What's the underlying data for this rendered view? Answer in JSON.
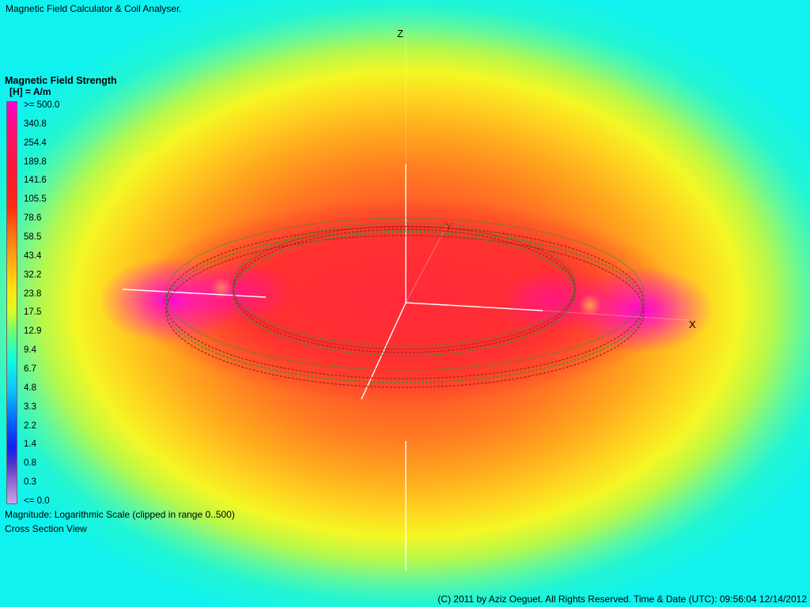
{
  "window": {
    "title": "Magnetic Field Calculator & Coil Analyser."
  },
  "legend": {
    "title": "Magnetic Field Strength",
    "unit": "[H] = A/m",
    "ticks": [
      ">= 500.0",
      "340.8",
      "254.4",
      "189.8",
      "141.6",
      "105.5",
      "78.6",
      "58.5",
      "43.4",
      "32.2",
      "23.8",
      "17.5",
      "12.9",
      "9.4",
      "6.7",
      "4.8",
      "3.3",
      "2.2",
      "1.4",
      "0.8",
      "0.3",
      "<= 0.0"
    ]
  },
  "magnitude_note": "Magnitude: Logarithmic Scale (clipped in range 0..500)",
  "view_mode": "Cross Section View",
  "axes": {
    "z": "Z",
    "x": "X",
    "y": "Y"
  },
  "footer": {
    "copyright": "(C) 2011 by Aziz Oeguet. All Rights Reserved.  Time & Date (UTC): 09:56:04  12/14/2012"
  },
  "colors": {
    "wire_red": "#a02020",
    "wire_green": "#20a020",
    "axis": "#ffffff"
  }
}
